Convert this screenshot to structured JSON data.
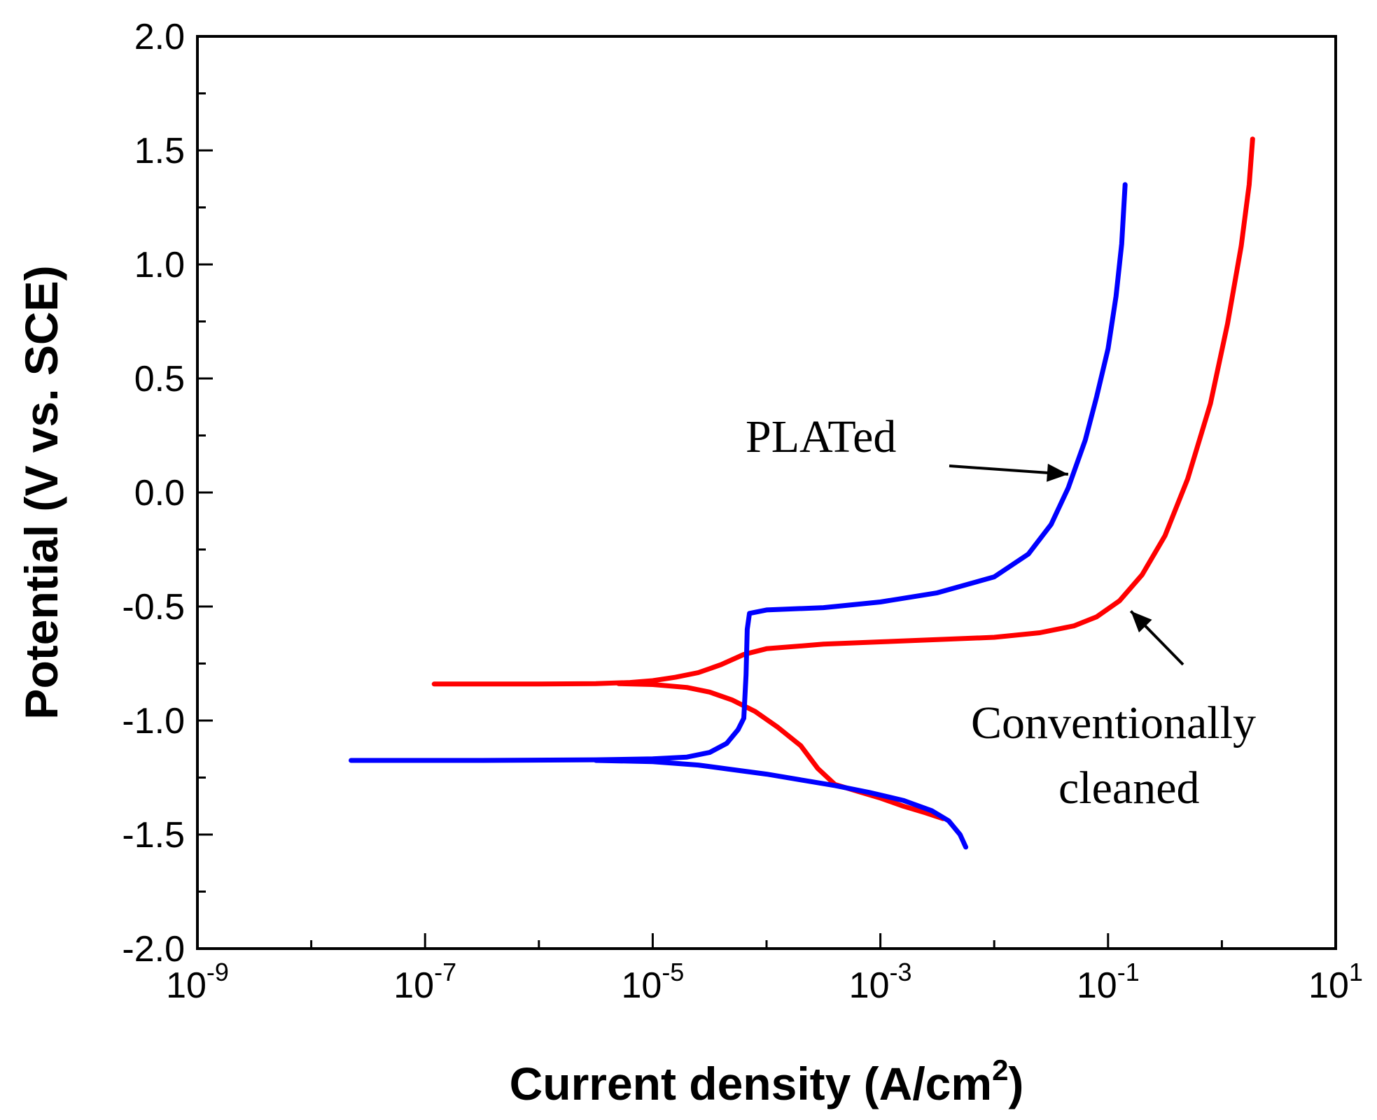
{
  "chart_data": {
    "type": "line",
    "title": "",
    "xlabel": "Current density (A/cm",
    "xlabel_sup": "2",
    "xlabel_close": ")",
    "ylabel": "Potential (V vs. SCE)",
    "xscale": "log",
    "xlim_exp": [
      -9,
      1
    ],
    "ylim": [
      -2.0,
      2.0
    ],
    "y_ticks": [
      "2.0",
      "1.5",
      "1.0",
      "0.5",
      "0.0",
      "-0.5",
      "-1.0",
      "-1.5",
      "-2.0"
    ],
    "x_ticks": [
      {
        "base": "10",
        "exp": "-9"
      },
      {
        "base": "10",
        "exp": "-7"
      },
      {
        "base": "10",
        "exp": "-5"
      },
      {
        "base": "10",
        "exp": "-3"
      },
      {
        "base": "10",
        "exp": "-1"
      },
      {
        "base": "10",
        "exp": "1"
      }
    ],
    "series": [
      {
        "name": "Conventionally cleaned",
        "color": "#ff0000",
        "points": [
          [
            -6.92,
            -0.84
          ],
          [
            -6.0,
            -0.84
          ],
          [
            -5.5,
            -0.838
          ],
          [
            -5.2,
            -0.833
          ],
          [
            -5.0,
            -0.825
          ],
          [
            -4.8,
            -0.81
          ],
          [
            -4.6,
            -0.79
          ],
          [
            -4.4,
            -0.755
          ],
          [
            -4.2,
            -0.71
          ],
          [
            -4.0,
            -0.685
          ],
          [
            -3.5,
            -0.665
          ],
          [
            -3.0,
            -0.655
          ],
          [
            -2.5,
            -0.645
          ],
          [
            -2.0,
            -0.635
          ],
          [
            -1.6,
            -0.615
          ],
          [
            -1.3,
            -0.585
          ],
          [
            -1.1,
            -0.545
          ],
          [
            -0.9,
            -0.475
          ],
          [
            -0.7,
            -0.36
          ],
          [
            -0.5,
            -0.19
          ],
          [
            -0.3,
            0.06
          ],
          [
            -0.1,
            0.39
          ],
          [
            0.05,
            0.74
          ],
          [
            0.17,
            1.08
          ],
          [
            0.24,
            1.35
          ],
          [
            0.27,
            1.55
          ]
        ],
        "cathodic_points": [
          [
            -5.3,
            -0.838
          ],
          [
            -5.0,
            -0.842
          ],
          [
            -4.7,
            -0.855
          ],
          [
            -4.5,
            -0.875
          ],
          [
            -4.3,
            -0.91
          ],
          [
            -4.1,
            -0.96
          ],
          [
            -3.9,
            -1.03
          ],
          [
            -3.7,
            -1.11
          ],
          [
            -3.55,
            -1.21
          ],
          [
            -3.4,
            -1.28
          ],
          [
            -3.2,
            -1.31
          ],
          [
            -3.0,
            -1.34
          ],
          [
            -2.8,
            -1.375
          ],
          [
            -2.6,
            -1.405
          ],
          [
            -2.45,
            -1.43
          ]
        ]
      },
      {
        "name": "PLATed",
        "color": "#0000ff",
        "points": [
          [
            -7.65,
            -1.175
          ],
          [
            -6.5,
            -1.175
          ],
          [
            -5.5,
            -1.172
          ],
          [
            -5.0,
            -1.168
          ],
          [
            -4.7,
            -1.16
          ],
          [
            -4.5,
            -1.14
          ],
          [
            -4.35,
            -1.1
          ],
          [
            -4.25,
            -1.04
          ],
          [
            -4.2,
            -0.99
          ],
          [
            -4.18,
            -0.8
          ],
          [
            -4.17,
            -0.6
          ],
          [
            -4.15,
            -0.53
          ],
          [
            -4.0,
            -0.515
          ],
          [
            -3.5,
            -0.505
          ],
          [
            -3.0,
            -0.48
          ],
          [
            -2.5,
            -0.44
          ],
          [
            -2.0,
            -0.37
          ],
          [
            -1.7,
            -0.27
          ],
          [
            -1.5,
            -0.14
          ],
          [
            -1.35,
            0.02
          ],
          [
            -1.2,
            0.23
          ],
          [
            -1.1,
            0.42
          ],
          [
            -1.0,
            0.63
          ],
          [
            -0.93,
            0.86
          ],
          [
            -0.88,
            1.09
          ],
          [
            -0.85,
            1.35
          ]
        ],
        "cathodic_points": [
          [
            -5.5,
            -1.175
          ],
          [
            -5.0,
            -1.18
          ],
          [
            -4.6,
            -1.195
          ],
          [
            -4.3,
            -1.215
          ],
          [
            -4.0,
            -1.235
          ],
          [
            -3.7,
            -1.26
          ],
          [
            -3.4,
            -1.285
          ],
          [
            -3.1,
            -1.315
          ],
          [
            -2.8,
            -1.35
          ],
          [
            -2.55,
            -1.395
          ],
          [
            -2.4,
            -1.44
          ],
          [
            -2.3,
            -1.5
          ],
          [
            -2.25,
            -1.555
          ]
        ]
      }
    ],
    "annotations": {
      "plated": {
        "text": "PLATed",
        "arrow_target": [
          -1.35,
          0.08
        ]
      },
      "conventional": {
        "lines": [
          "Conventionally",
          "cleaned"
        ],
        "arrow_target": [
          -0.8,
          -0.52
        ]
      }
    }
  }
}
